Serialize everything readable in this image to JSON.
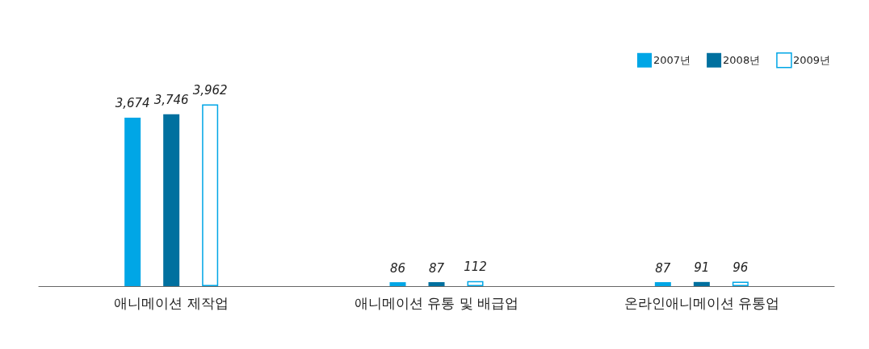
{
  "chart_data": {
    "type": "bar",
    "categories": [
      "애니메이션 제작업",
      "애니메이션 유통 및 배급업",
      "온라인애니메이션 유통업"
    ],
    "series": [
      {
        "name": "2007년",
        "color": "#00a6e6",
        "values": [
          3674,
          86,
          87
        ],
        "value_labels": [
          "3,674",
          "86",
          "87"
        ]
      },
      {
        "name": "2008년",
        "color": "#00709f",
        "values": [
          3746,
          87,
          91
        ],
        "value_labels": [
          "3,746",
          "87",
          "91"
        ]
      },
      {
        "name": "2009년",
        "color": "#ffffff",
        "values": [
          3962,
          112,
          96
        ],
        "value_labels": [
          "3,962",
          "112",
          "96"
        ]
      }
    ],
    "legend": "top right",
    "grid": false
  }
}
